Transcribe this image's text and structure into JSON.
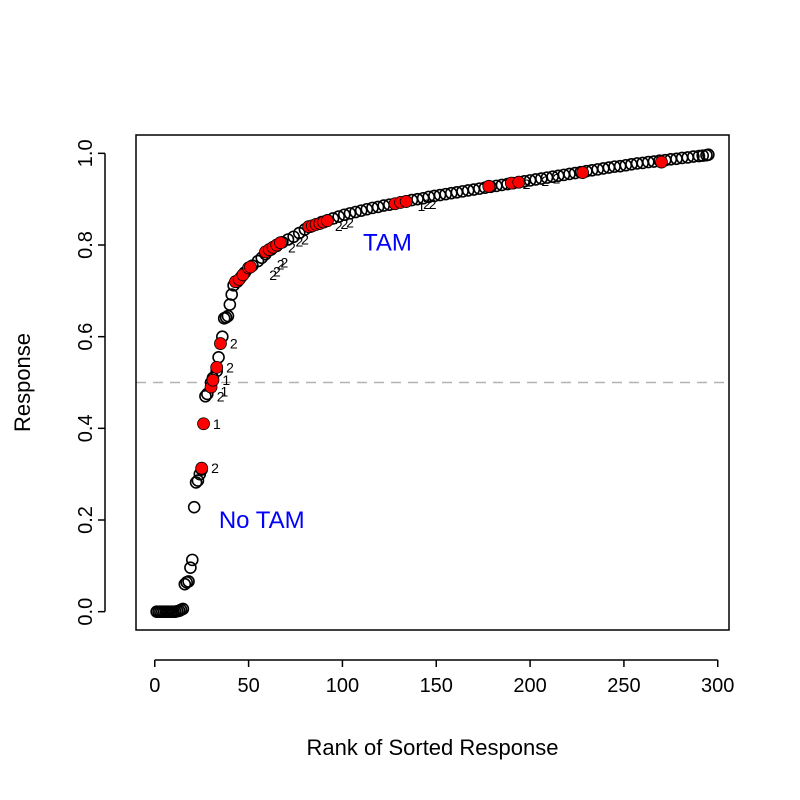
{
  "chart_data": {
    "type": "scatter",
    "title": "",
    "xlabel": "Rank of Sorted Response",
    "ylabel": "Response",
    "xlim": [
      -10,
      306
    ],
    "ylim": [
      -0.04,
      1.04
    ],
    "x_ticks": [
      0,
      50,
      100,
      150,
      200,
      250,
      300
    ],
    "y_ticks": [
      0.0,
      0.2,
      0.4,
      0.6,
      0.8,
      1.0
    ],
    "x_tick_labels": [
      "0",
      "50",
      "100",
      "150",
      "200",
      "250",
      "300"
    ],
    "y_tick_labels": [
      "0.0",
      "0.2",
      "0.4",
      "0.6",
      "0.8",
      "1.0"
    ],
    "grid": false,
    "reference_line": {
      "y": 0.5,
      "style": "dashed",
      "color": "#b3b3b3"
    },
    "region_labels": [
      {
        "text": "TAM",
        "x": 124,
        "y": 0.805,
        "color": "#0000ff"
      },
      {
        "text": "No TAM",
        "x": 57,
        "y": 0.2,
        "color": "#0000ff"
      }
    ],
    "series": [
      {
        "marker": "open-circle",
        "color": "#000000",
        "points": [
          [
            1,
            0.0
          ],
          [
            2,
            0.0
          ],
          [
            3,
            0.0
          ],
          [
            4,
            0.0
          ],
          [
            5,
            0.0
          ],
          [
            6,
            0.0
          ],
          [
            7,
            0.0
          ],
          [
            8,
            0.0
          ],
          [
            9,
            0.0
          ],
          [
            10,
            0.0
          ],
          [
            11,
            0.0
          ],
          [
            12,
            0.001
          ],
          [
            13,
            0.002
          ],
          [
            14,
            0.004
          ],
          [
            15,
            0.006
          ],
          [
            16,
            0.06
          ],
          [
            17,
            0.064
          ],
          [
            18,
            0.066
          ],
          [
            19,
            0.096
          ],
          [
            20,
            0.113
          ],
          [
            21,
            0.228
          ],
          [
            22,
            0.282
          ],
          [
            23,
            0.286
          ],
          [
            24,
            0.3
          ],
          [
            25,
            0.31
          ],
          [
            27,
            0.47
          ],
          [
            28,
            0.475
          ],
          [
            30,
            0.5
          ],
          [
            31,
            0.51
          ],
          [
            33,
            0.525
          ],
          [
            34,
            0.555
          ],
          [
            36,
            0.6
          ],
          [
            37,
            0.64
          ],
          [
            38,
            0.642
          ],
          [
            39,
            0.645
          ],
          [
            40,
            0.67
          ],
          [
            41,
            0.692
          ],
          [
            42,
            0.712
          ],
          [
            44,
            0.72
          ],
          [
            46,
            0.73
          ],
          [
            48,
            0.74
          ],
          [
            52,
            0.755
          ],
          [
            55,
            0.765
          ],
          [
            57,
            0.772
          ],
          [
            59,
            0.78
          ],
          [
            62,
            0.79
          ],
          [
            65,
            0.798
          ],
          [
            68,
            0.806
          ],
          [
            71,
            0.812
          ],
          [
            74,
            0.818
          ],
          [
            77,
            0.826
          ],
          [
            80,
            0.834
          ],
          [
            83,
            0.84
          ],
          [
            86,
            0.845
          ],
          [
            89,
            0.85
          ],
          [
            92,
            0.854
          ],
          [
            95,
            0.858
          ],
          [
            98,
            0.862
          ],
          [
            101,
            0.866
          ],
          [
            104,
            0.869
          ],
          [
            107,
            0.872
          ],
          [
            110,
            0.875
          ],
          [
            113,
            0.878
          ],
          [
            116,
            0.881
          ],
          [
            119,
            0.883
          ],
          [
            122,
            0.886
          ],
          [
            125,
            0.888
          ],
          [
            128,
            0.89
          ],
          [
            131,
            0.893
          ],
          [
            134,
            0.895
          ],
          [
            137,
            0.898
          ],
          [
            140,
            0.9
          ],
          [
            143,
            0.902
          ],
          [
            146,
            0.905
          ],
          [
            149,
            0.907
          ],
          [
            152,
            0.909
          ],
          [
            155,
            0.911
          ],
          [
            158,
            0.913
          ],
          [
            161,
            0.915
          ],
          [
            164,
            0.917
          ],
          [
            167,
            0.919
          ],
          [
            170,
            0.921
          ],
          [
            173,
            0.923
          ],
          [
            176,
            0.925
          ],
          [
            179,
            0.927
          ],
          [
            182,
            0.929
          ],
          [
            185,
            0.931
          ],
          [
            188,
            0.933
          ],
          [
            191,
            0.935
          ],
          [
            194,
            0.937
          ],
          [
            197,
            0.939
          ],
          [
            200,
            0.941
          ],
          [
            203,
            0.943
          ],
          [
            206,
            0.945
          ],
          [
            209,
            0.947
          ],
          [
            212,
            0.949
          ],
          [
            215,
            0.951
          ],
          [
            218,
            0.953
          ],
          [
            221,
            0.955
          ],
          [
            224,
            0.957
          ],
          [
            227,
            0.959
          ],
          [
            230,
            0.961
          ],
          [
            233,
            0.963
          ],
          [
            236,
            0.965
          ],
          [
            239,
            0.967
          ],
          [
            242,
            0.969
          ],
          [
            245,
            0.971
          ],
          [
            248,
            0.972
          ],
          [
            251,
            0.974
          ],
          [
            254,
            0.976
          ],
          [
            257,
            0.978
          ],
          [
            260,
            0.979
          ],
          [
            263,
            0.981
          ],
          [
            266,
            0.982
          ],
          [
            269,
            0.984
          ],
          [
            272,
            0.985
          ],
          [
            275,
            0.987
          ],
          [
            278,
            0.988
          ],
          [
            281,
            0.99
          ],
          [
            284,
            0.991
          ],
          [
            287,
            0.993
          ],
          [
            290,
            0.994
          ],
          [
            292,
            0.995
          ],
          [
            294,
            0.996
          ],
          [
            295,
            0.997
          ]
        ]
      },
      {
        "marker": "filled-circle",
        "color": "#ff0000",
        "points": [
          [
            25,
            0.313
          ],
          [
            26,
            0.41
          ],
          [
            30,
            0.49
          ],
          [
            31,
            0.505
          ],
          [
            33,
            0.533
          ],
          [
            35,
            0.585
          ],
          [
            43,
            0.72
          ],
          [
            45,
            0.725
          ],
          [
            47,
            0.735
          ],
          [
            50,
            0.75
          ],
          [
            51,
            0.752
          ],
          [
            59,
            0.785
          ],
          [
            61,
            0.79
          ],
          [
            63,
            0.795
          ],
          [
            65,
            0.8
          ],
          [
            67,
            0.805
          ],
          [
            82,
            0.84
          ],
          [
            84,
            0.842
          ],
          [
            86,
            0.845
          ],
          [
            88,
            0.847
          ],
          [
            90,
            0.85
          ],
          [
            92,
            0.853
          ],
          [
            128,
            0.89
          ],
          [
            131,
            0.893
          ],
          [
            134,
            0.895
          ],
          [
            178,
            0.928
          ],
          [
            190,
            0.935
          ],
          [
            194,
            0.937
          ],
          [
            228,
            0.958
          ],
          [
            270,
            0.981
          ]
        ]
      }
    ],
    "point_labels": [
      {
        "text": "2",
        "x": 40,
        "y": 0.585
      },
      {
        "text": "2",
        "x": 38,
        "y": 0.533
      },
      {
        "text": "1",
        "x": 36,
        "y": 0.505
      },
      {
        "text": "1",
        "x": 35,
        "y": 0.48
      },
      {
        "text": "2",
        "x": 33,
        "y": 0.47
      },
      {
        "text": "1",
        "x": 31,
        "y": 0.41
      },
      {
        "text": "2",
        "x": 30,
        "y": 0.313
      },
      {
        "text": "2",
        "x": 61,
        "y": 0.735
      },
      {
        "text": "2",
        "x": 63,
        "y": 0.742
      },
      {
        "text": "2",
        "x": 65,
        "y": 0.758
      },
      {
        "text": "2",
        "x": 67,
        "y": 0.762
      },
      {
        "text": "2",
        "x": 71,
        "y": 0.795
      },
      {
        "text": "2",
        "x": 75,
        "y": 0.808
      },
      {
        "text": "2",
        "x": 78,
        "y": 0.812
      },
      {
        "text": "2",
        "x": 96,
        "y": 0.842
      },
      {
        "text": "2",
        "x": 99,
        "y": 0.846
      },
      {
        "text": "2",
        "x": 102,
        "y": 0.849
      },
      {
        "text": "1",
        "x": 140,
        "y": 0.885
      },
      {
        "text": "2",
        "x": 143,
        "y": 0.89
      },
      {
        "text": "2",
        "x": 146,
        "y": 0.889
      },
      {
        "text": "2",
        "x": 196,
        "y": 0.933
      },
      {
        "text": "2",
        "x": 206,
        "y": 0.94
      },
      {
        "text": "2",
        "x": 212,
        "y": 0.945
      }
    ]
  }
}
